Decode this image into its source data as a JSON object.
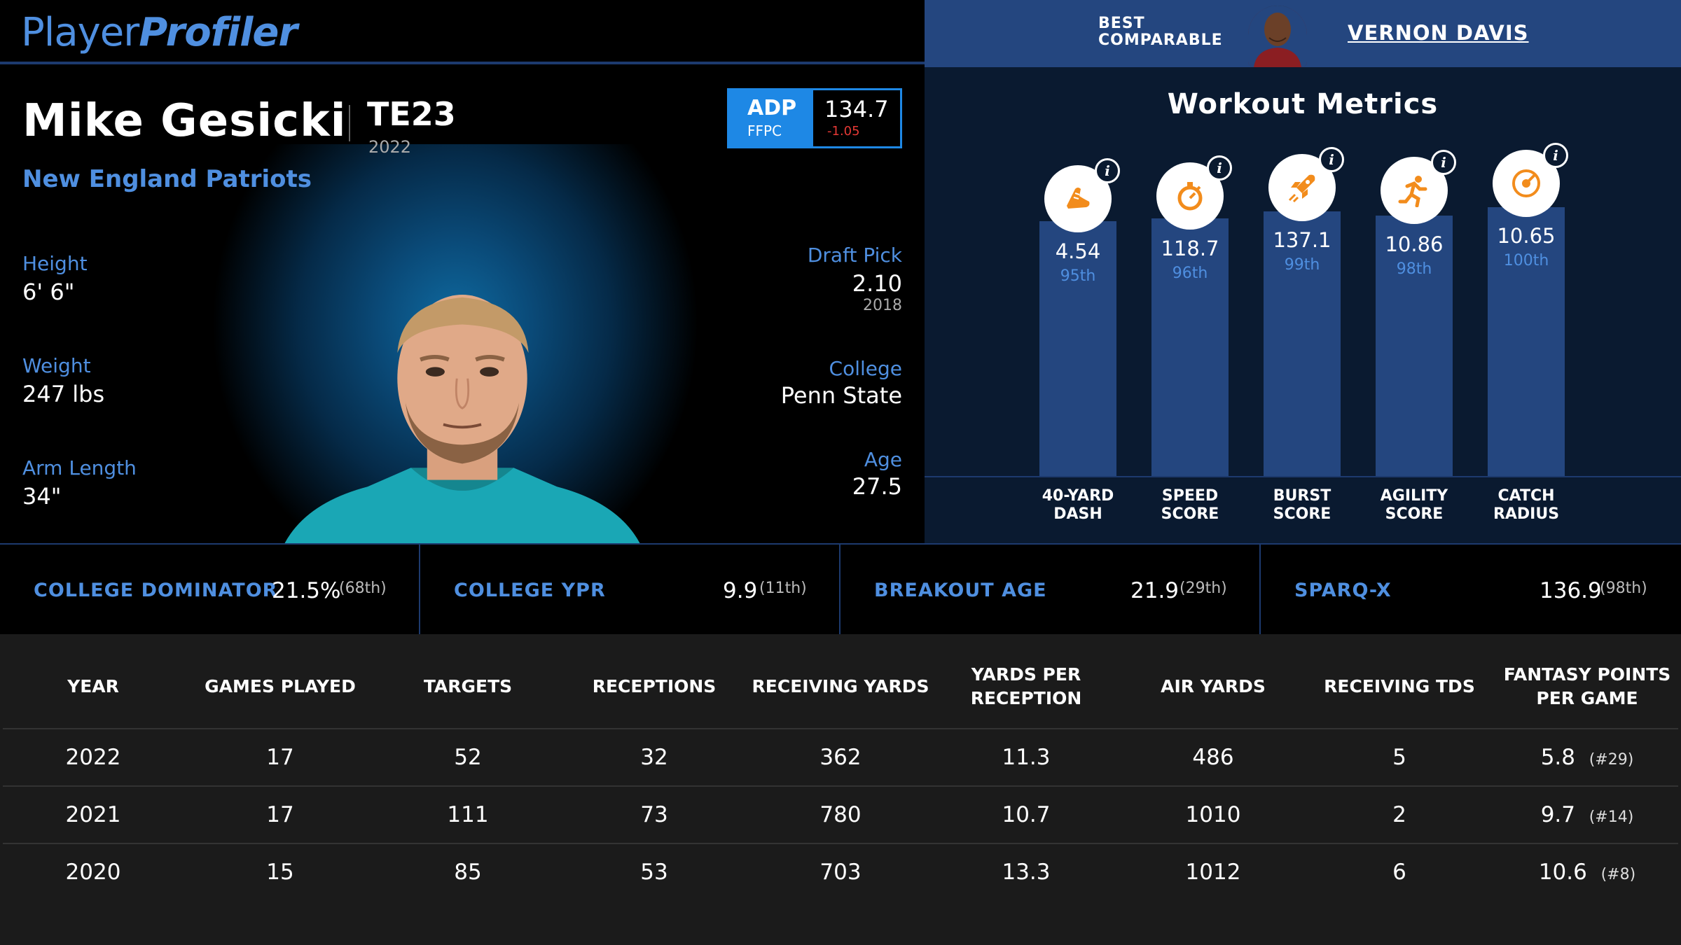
{
  "brand": {
    "part1": "Player",
    "part2": "Profiler"
  },
  "comparable": {
    "label_line1": "BEST",
    "label_line2": "COMPARABLE",
    "name": "VERNON DAVIS"
  },
  "player": {
    "name": "Mike Gesicki",
    "position_rank": "TE23",
    "season": "2022",
    "team": "New England Patriots"
  },
  "adp": {
    "label": "ADP",
    "site": "FFPC",
    "value": "134.7",
    "change": "-1.05"
  },
  "bio": {
    "height_label": "Height",
    "height": "6' 6\"",
    "weight_label": "Weight",
    "weight": "247 lbs",
    "arm_label": "Arm Length",
    "arm": "34\"",
    "draft_label": "Draft Pick",
    "draft": "2.10",
    "draft_year": "2018",
    "college_label": "College",
    "college": "Penn State",
    "age_label": "Age",
    "age": "27.5"
  },
  "workout": {
    "title": "Workout Metrics",
    "info_glyph": "i",
    "metrics": [
      {
        "label_line1": "40-YARD",
        "label_line2": "DASH",
        "value": "4.54",
        "percentile": "95th",
        "pct_num": 95,
        "icon": "shoe-icon"
      },
      {
        "label_line1": "SPEED",
        "label_line2": "SCORE",
        "value": "118.7",
        "percentile": "96th",
        "pct_num": 96,
        "icon": "stopwatch-icon"
      },
      {
        "label_line1": "BURST",
        "label_line2": "SCORE",
        "value": "137.1",
        "percentile": "99th",
        "pct_num": 99,
        "icon": "rocket-icon"
      },
      {
        "label_line1": "AGILITY",
        "label_line2": "SCORE",
        "value": "10.86",
        "percentile": "98th",
        "pct_num": 98,
        "icon": "runner-icon"
      },
      {
        "label_line1": "CATCH",
        "label_line2": "RADIUS",
        "value": "10.65",
        "percentile": "100th",
        "pct_num": 100,
        "icon": "target-icon"
      }
    ]
  },
  "advanced": [
    {
      "label": "COLLEGE DOMINATOR",
      "value": "21.5%",
      "rank": "(68th)"
    },
    {
      "label": "COLLEGE YPR",
      "value": "9.9",
      "rank": "(11th)"
    },
    {
      "label": "BREAKOUT AGE",
      "value": "21.9",
      "rank": "(29th)"
    },
    {
      "label": "SPARQ-X",
      "value": "136.9",
      "rank": "(98th)"
    }
  ],
  "table": {
    "headers": [
      "YEAR",
      "GAMES PLAYED",
      "TARGETS",
      "RECEPTIONS",
      "RECEIVING YARDS",
      "YARDS PER RECEPTION",
      "AIR YARDS",
      "RECEIVING TDS",
      "FANTASY POINTS PER GAME"
    ],
    "rows": [
      {
        "year": "2022",
        "games": "17",
        "targets": "52",
        "rec": "32",
        "yards": "362",
        "ypr": "11.3",
        "air": "486",
        "tds": "5",
        "fppg": "5.8",
        "fppg_rank": "(#29)"
      },
      {
        "year": "2021",
        "games": "17",
        "targets": "111",
        "rec": "73",
        "yards": "780",
        "ypr": "10.7",
        "air": "1010",
        "tds": "2",
        "fppg": "9.7",
        "fppg_rank": "(#14)"
      },
      {
        "year": "2020",
        "games": "15",
        "targets": "85",
        "rec": "53",
        "yards": "703",
        "ypr": "13.3",
        "air": "1012",
        "tds": "6",
        "fppg": "10.6",
        "fppg_rank": "(#8)"
      }
    ]
  },
  "colors": {
    "accent": "#4f8fe0",
    "bar": "#24467f",
    "icon": "#f28c1c",
    "negative": "#e53935"
  }
}
